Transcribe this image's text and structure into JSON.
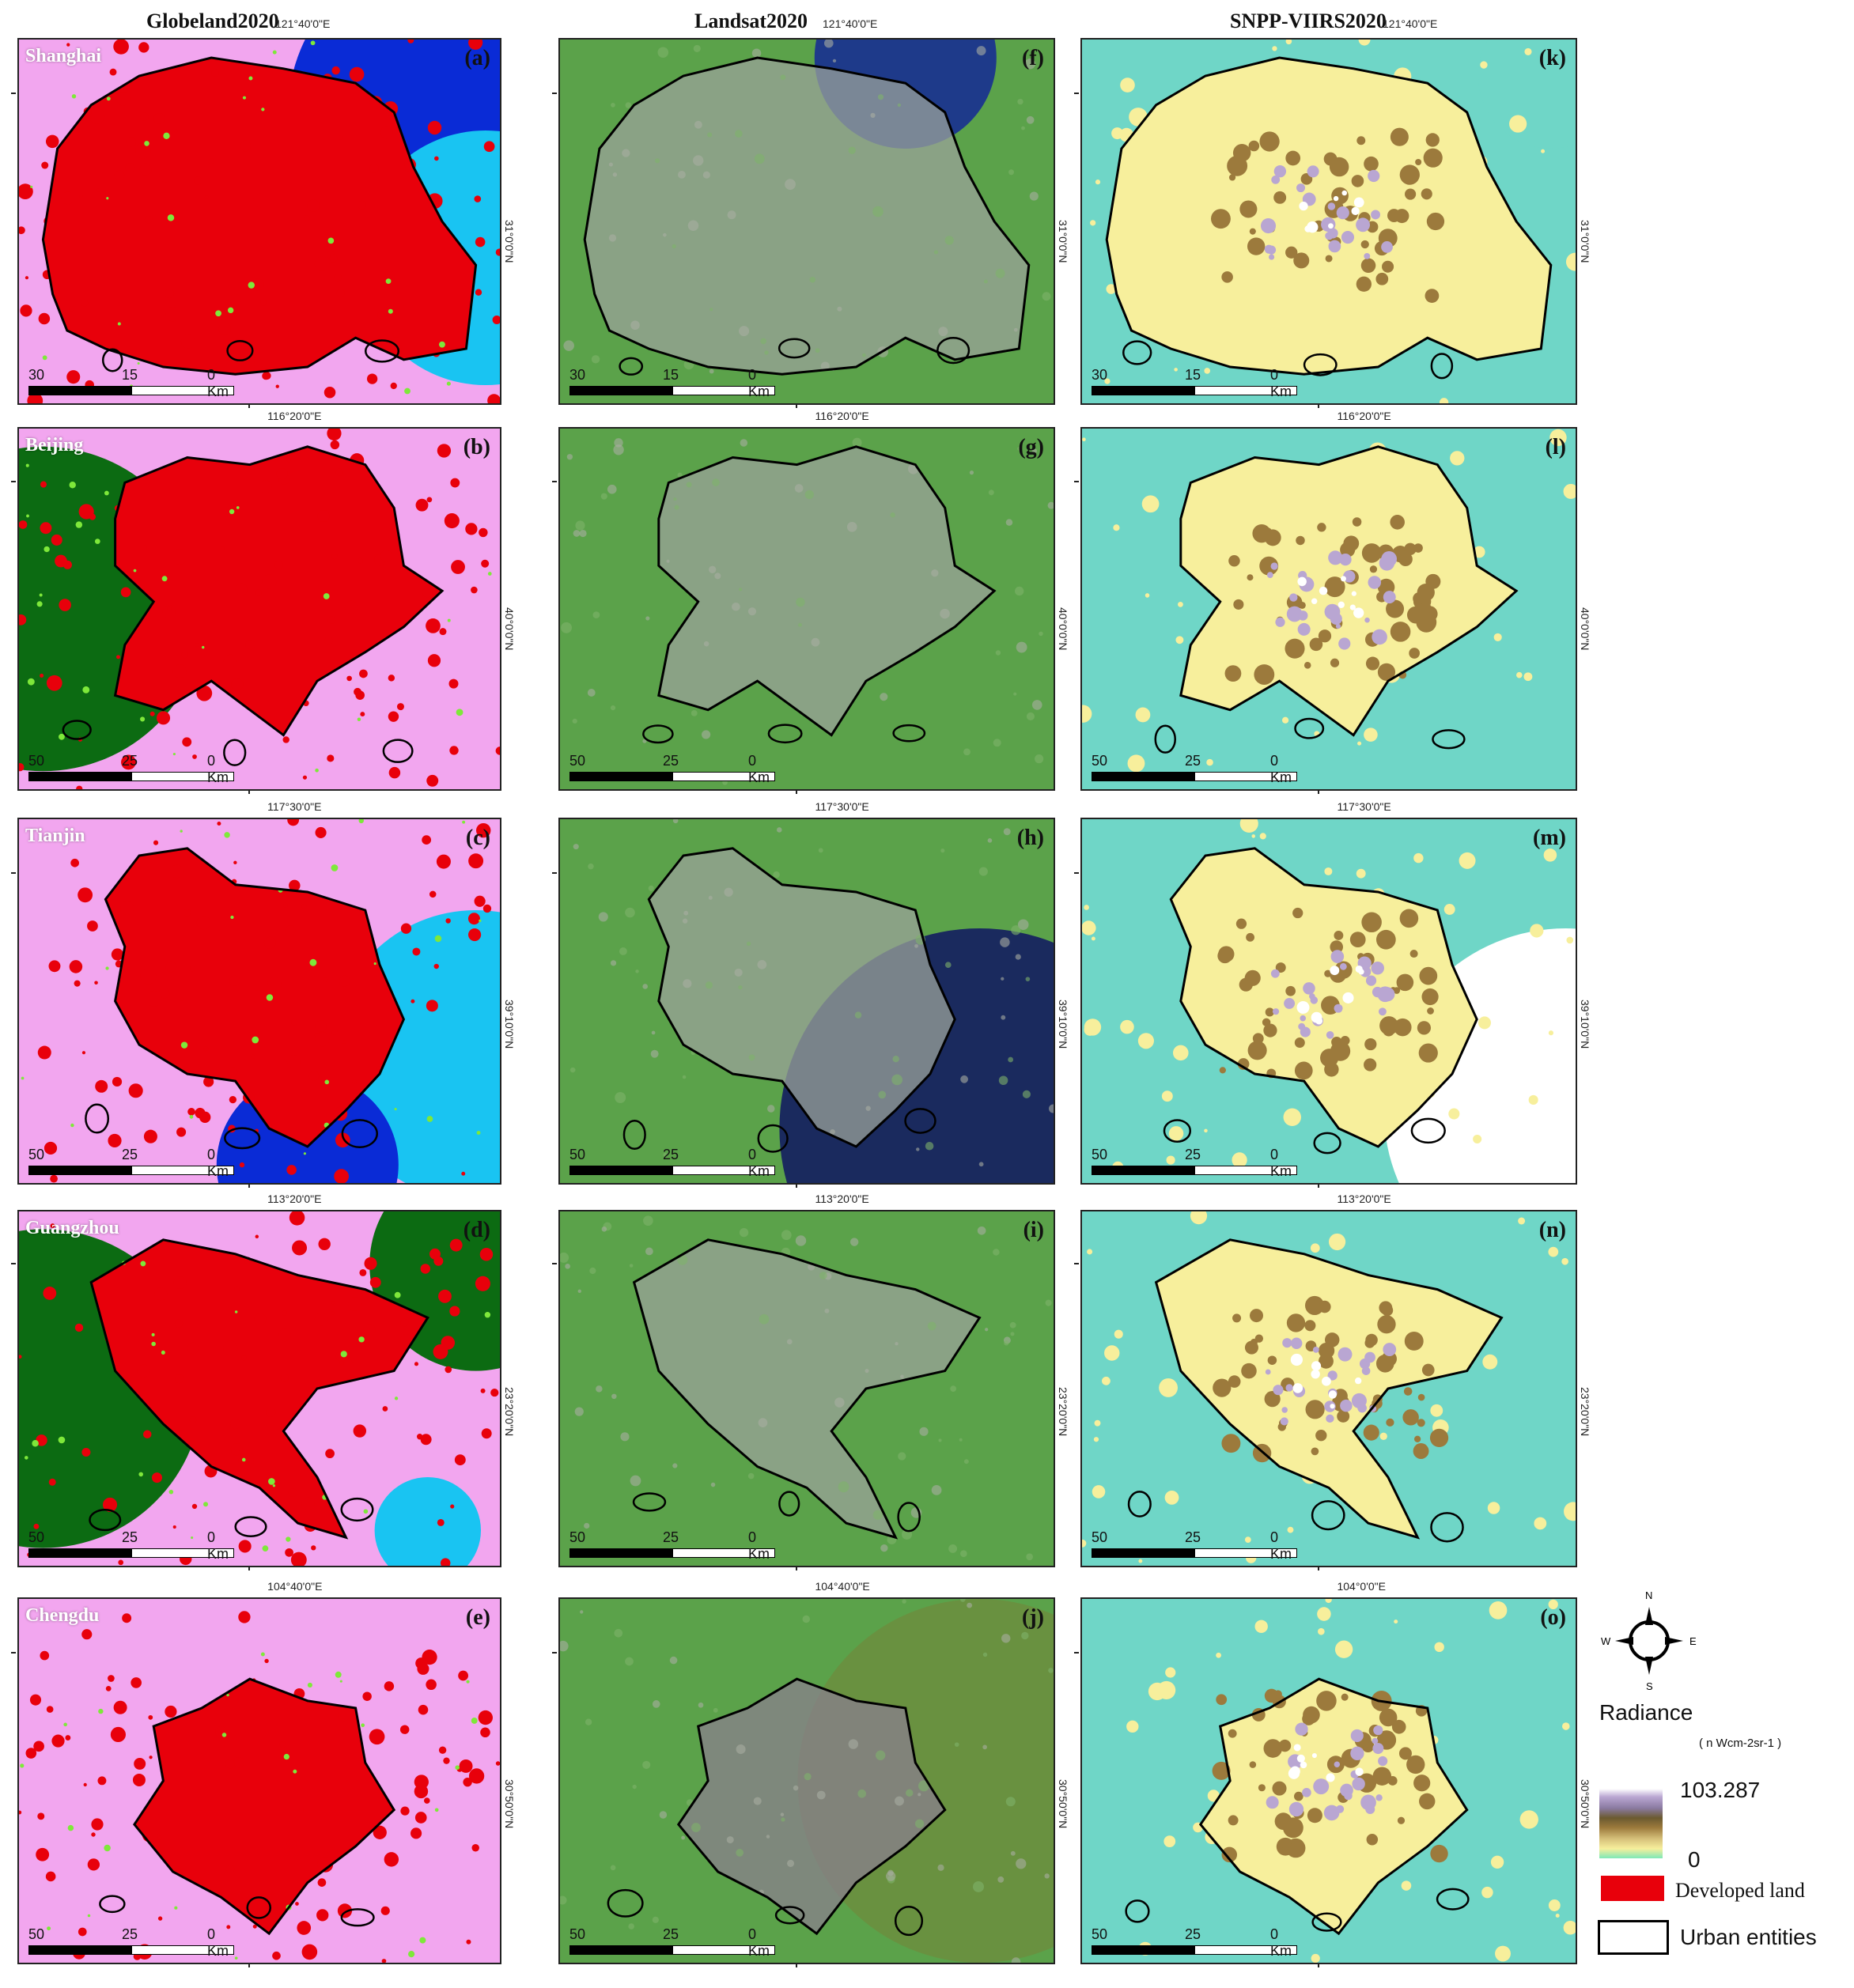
{
  "columns": [
    {
      "title": "Globeland2020",
      "coord": "121°40'0\"E"
    },
    {
      "title": "Landsat2020",
      "coord": "121°40'0\"E"
    },
    {
      "title": "SNPP-VIIRS2020",
      "coord": "121°40'0\"E"
    }
  ],
  "rows": [
    {
      "city": "Shanghai",
      "top_coord": "",
      "side_coord": "31°0'0\"N",
      "letters": [
        "(a)",
        "(f)",
        "(k)"
      ],
      "scale": {
        "left": "30",
        "mid": "15",
        "right": "0 Km"
      }
    },
    {
      "city": "Beijing",
      "top_coord": "116°20'0\"E",
      "side_coord": "40°0'0\"N",
      "letters": [
        "(b)",
        "(g)",
        "(l)"
      ],
      "scale": {
        "left": "50",
        "mid": "25",
        "right": "0 Km"
      }
    },
    {
      "city": "Tianjin",
      "top_coord": "117°30'0\"E",
      "side_coord": "39°10'0\"N",
      "letters": [
        "(c)",
        "(h)",
        "(m)"
      ],
      "scale": {
        "left": "50",
        "mid": "25",
        "right": "0 Km"
      }
    },
    {
      "city": "Guangzhou",
      "top_coord": "113°20'0\"E",
      "side_coord": "23°20'0\"N",
      "letters": [
        "(d)",
        "(i)",
        "(n)"
      ],
      "scale": {
        "left": "50",
        "mid": "25",
        "right": "0 Km"
      }
    },
    {
      "city": "Chengdu",
      "top_coord": "104°40'0\"E",
      "side_coord": "30°50'0\"N",
      "letters": [
        "(e)",
        "(j)",
        "(o)"
      ],
      "scale": {
        "left": "50",
        "mid": "25",
        "right": "0 Km"
      }
    }
  ],
  "chengdu_viirs_top_coord": "104°0'0\"E",
  "compass": {
    "n": "N",
    "s": "S",
    "e": "E",
    "w": "W"
  },
  "legend": {
    "radiance_title": "Radiance",
    "radiance_unit": "( n Wcm-2sr-1 )",
    "max_value": "103.287",
    "min_value": "0",
    "developed_land": "Developed land",
    "urban_entities": "Urban entities"
  },
  "colors": {
    "globeland_bg": "#f2a6ef",
    "developed": "#e8000b",
    "water_dark": "#0a2bd6",
    "water_light": "#19c4f2",
    "forest": "#0c6b12",
    "grass": "#7ee83a",
    "landsat_green": "#5ba24a",
    "landsat_gray": "#9aa29a",
    "landsat_water": "#1e3a8a",
    "viirs_bg": "#6fd6c7",
    "viirs_yellow": "#f7ef9c",
    "viirs_brown": "#9c7a3c",
    "viirs_purple": "#b9a6d2"
  }
}
